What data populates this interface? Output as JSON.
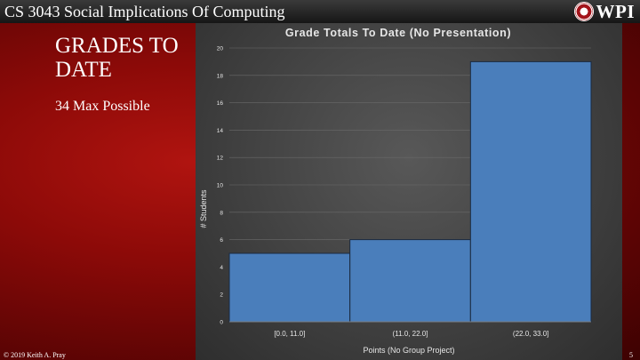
{
  "header": {
    "course_title": "CS 3043 Social Implications Of Computing",
    "logo_text": "WPI"
  },
  "slide": {
    "heading": "GRADES TO DATE",
    "subtitle": "34 Max Possible"
  },
  "footer": {
    "copyright": "© 2019 Keith A. Pray",
    "page_number": "5"
  },
  "colors": {
    "bar_fill": "#4a7ebb",
    "bar_stroke": "#1a2a40",
    "header_bar": "#1e1e1e",
    "background_red": "#8c0a08"
  },
  "chart_data": {
    "type": "bar",
    "title": "Grade Totals To Date (No Presentation)",
    "xlabel": "Points (No Group Project)",
    "ylabel": "# Students",
    "categories": [
      "[0.0, 11.0]",
      "(11.0, 22.0]",
      "(22.0, 33.0]"
    ],
    "values": [
      5,
      6,
      19
    ],
    "ylim": [
      0,
      20
    ],
    "yticks": [
      0,
      2,
      4,
      6,
      8,
      10,
      12,
      14,
      16,
      18,
      20
    ],
    "grid": true,
    "legend": "none"
  }
}
